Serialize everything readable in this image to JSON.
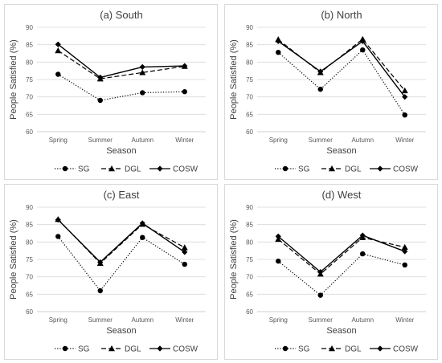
{
  "chart_data": [
    {
      "type": "line",
      "title": "(a) South",
      "xlabel": "Season",
      "ylabel": "People Satisfied (%)",
      "categories": [
        "Spring",
        "Summer",
        "Autumn",
        "Winter"
      ],
      "ylim": [
        60,
        90
      ],
      "yticks": [
        60,
        65,
        70,
        75,
        80,
        85,
        90
      ],
      "legend": "bottom",
      "series": [
        {
          "name": "SG",
          "values": [
            76.5,
            69.0,
            71.2,
            71.5
          ]
        },
        {
          "name": "DGL",
          "values": [
            83.3,
            75.2,
            77.0,
            78.8
          ]
        },
        {
          "name": "COSW",
          "values": [
            85.1,
            75.6,
            78.6,
            78.9
          ]
        }
      ]
    },
    {
      "type": "line",
      "title": "(b) North",
      "xlabel": "Season",
      "ylabel": "People Satisfied (%)",
      "categories": [
        "Spring",
        "Summer",
        "Autumn",
        "Winter"
      ],
      "ylim": [
        60,
        90
      ],
      "yticks": [
        60,
        65,
        70,
        75,
        80,
        85,
        90
      ],
      "legend": "bottom",
      "series": [
        {
          "name": "SG",
          "values": [
            82.8,
            72.2,
            83.5,
            64.8
          ]
        },
        {
          "name": "DGL",
          "values": [
            86.5,
            77.0,
            86.6,
            71.8
          ]
        },
        {
          "name": "COSW",
          "values": [
            86.0,
            77.3,
            86.0,
            70.0
          ]
        }
      ]
    },
    {
      "type": "line",
      "title": "(c)  East",
      "xlabel": "Season",
      "ylabel": "People Satisfied (%)",
      "categories": [
        "Spring",
        "Summer",
        "Autumn",
        "Winter"
      ],
      "ylim": [
        60,
        90
      ],
      "yticks": [
        60,
        65,
        70,
        75,
        80,
        85,
        90
      ],
      "legend": "bottom",
      "series": [
        {
          "name": "SG",
          "values": [
            81.6,
            66.0,
            81.3,
            73.6
          ]
        },
        {
          "name": "DGL",
          "values": [
            86.5,
            73.9,
            85.1,
            78.4
          ]
        },
        {
          "name": "COSW",
          "values": [
            86.4,
            74.2,
            85.4,
            77.1
          ]
        }
      ]
    },
    {
      "type": "line",
      "title": "(d)  West",
      "xlabel": "Season",
      "ylabel": "People Satisfied (%)",
      "categories": [
        "Spring",
        "Summer",
        "Autumn",
        "Winter"
      ],
      "ylim": [
        60,
        90
      ],
      "yticks": [
        60,
        65,
        70,
        75,
        80,
        85,
        90
      ],
      "legend": "bottom",
      "series": [
        {
          "name": "SG",
          "values": [
            74.5,
            64.7,
            76.6,
            73.4
          ]
        },
        {
          "name": "DGL",
          "values": [
            80.8,
            70.8,
            81.3,
            78.5
          ]
        },
        {
          "name": "COSW",
          "values": [
            81.6,
            71.4,
            81.9,
            77.3
          ]
        }
      ]
    }
  ],
  "style": {
    "line_color": "#000000",
    "grid_color": "#d9d9d9",
    "axis_color": "#bfbfbf",
    "series_styles": [
      {
        "dash": "dotted",
        "marker": "circle"
      },
      {
        "dash": "dashed",
        "marker": "triangle"
      },
      {
        "dash": "solid",
        "marker": "diamond"
      }
    ]
  }
}
